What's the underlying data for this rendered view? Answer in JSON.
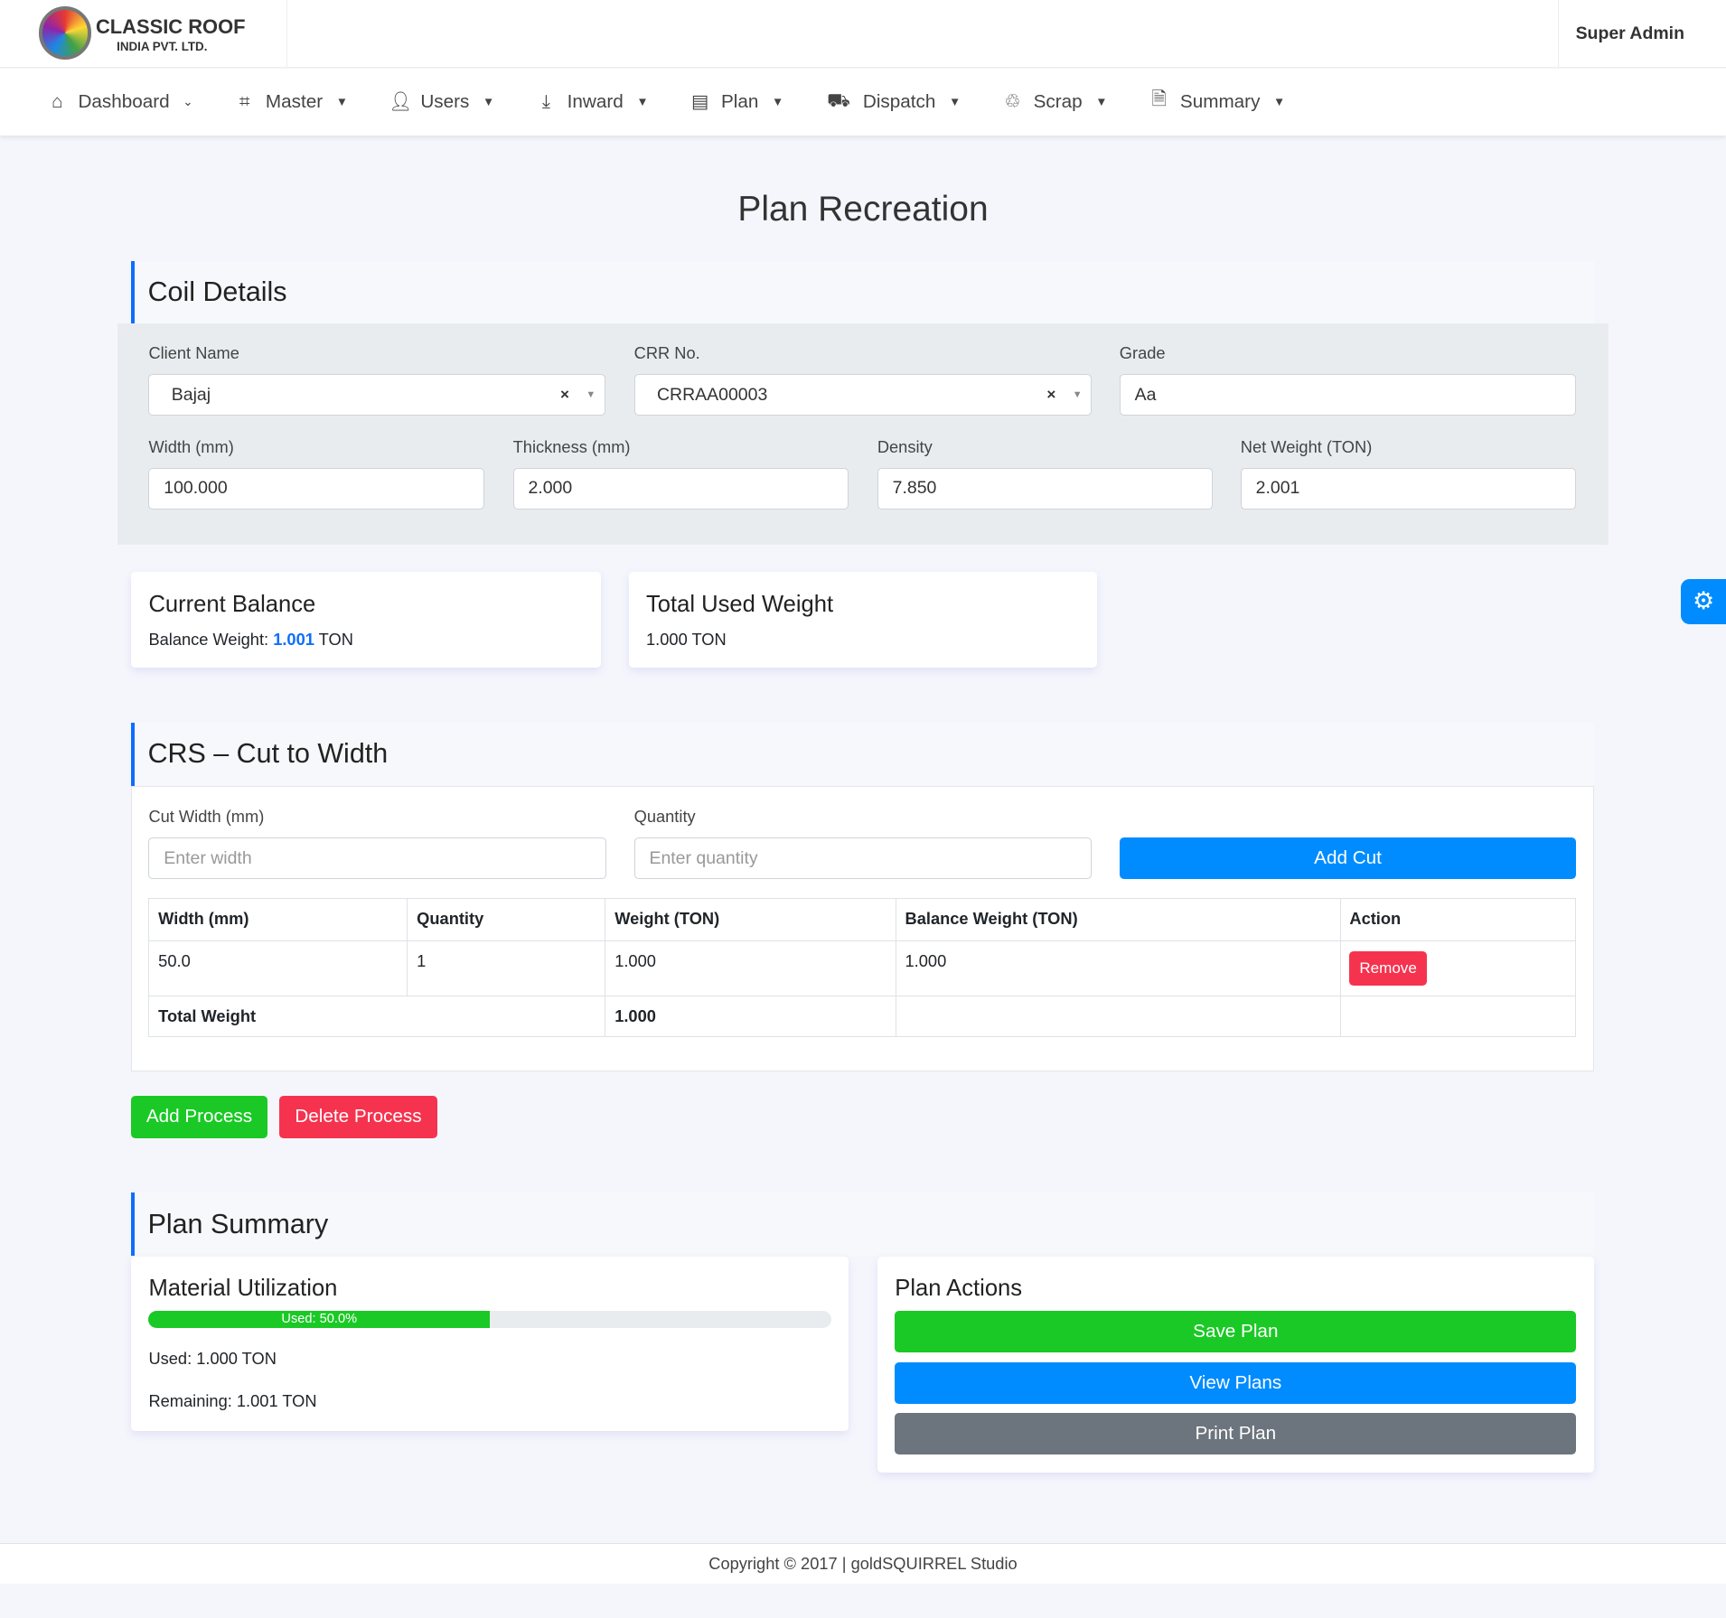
{
  "header": {
    "logo_line1": "CLASSIC ROOF",
    "logo_line2": "INDIA PVT. LTD.",
    "user": "Super Admin"
  },
  "nav": [
    {
      "label": "Dashboard",
      "icon": "home-icon"
    },
    {
      "label": "Master",
      "icon": "vector-icon"
    },
    {
      "label": "Users",
      "icon": "user-icon"
    },
    {
      "label": "Inward",
      "icon": "download-icon"
    },
    {
      "label": "Plan",
      "icon": "calendar-icon"
    },
    {
      "label": "Dispatch",
      "icon": "truck-icon"
    },
    {
      "label": "Scrap",
      "icon": "recycle-icon"
    },
    {
      "label": "Summary",
      "icon": "file-icon"
    }
  ],
  "page_title": "Plan Recreation",
  "coil": {
    "heading": "Coil Details",
    "client_label": "Client Name",
    "client_value": "Bajaj",
    "crr_label": "CRR No.",
    "crr_value": "CRRAA00003",
    "grade_label": "Grade",
    "grade_value": "Aa",
    "width_label": "Width (mm)",
    "width_value": "100.000",
    "thickness_label": "Thickness (mm)",
    "thickness_value": "2.000",
    "density_label": "Density",
    "density_value": "7.850",
    "net_label": "Net Weight (TON)",
    "net_value": "2.001"
  },
  "balance": {
    "title": "Current Balance",
    "prefix": "Balance Weight:",
    "value": "1.001",
    "unit": "TON",
    "value_color": "#0d6efd"
  },
  "used": {
    "title": "Total Used Weight",
    "value": "1.000 TON"
  },
  "crs": {
    "heading": "CRS – Cut to Width",
    "cut_label": "Cut Width (mm)",
    "cut_placeholder": "Enter width",
    "qty_label": "Quantity",
    "qty_placeholder": "Enter quantity",
    "add_cut": "Add Cut",
    "columns": [
      "Width (mm)",
      "Quantity",
      "Weight (TON)",
      "Balance Weight (TON)",
      "Action"
    ],
    "rows": [
      {
        "width": "50.0",
        "qty": "1",
        "weight": "1.000",
        "balance": "1.000",
        "action": "Remove"
      }
    ],
    "total_label": "Total Weight",
    "total_value": "1.000"
  },
  "process": {
    "add": "Add Process",
    "delete": "Delete Process"
  },
  "summary": {
    "heading": "Plan Summary",
    "util_title": "Material Utilization",
    "progress_percent": 50.0,
    "progress_label": "Used: 50.0%",
    "used": "Used: 1.000 TON",
    "remaining": "Remaining: 1.001 TON",
    "actions_title": "Plan Actions",
    "save": "Save Plan",
    "view": "View Plans",
    "print": "Print Plan"
  },
  "footer": "Copyright © 2017 | goldSQUIRREL Studio",
  "colors": {
    "primary": "#008cff",
    "success": "#1ac925",
    "danger": "#f5334f",
    "secondary": "#6c757d"
  }
}
